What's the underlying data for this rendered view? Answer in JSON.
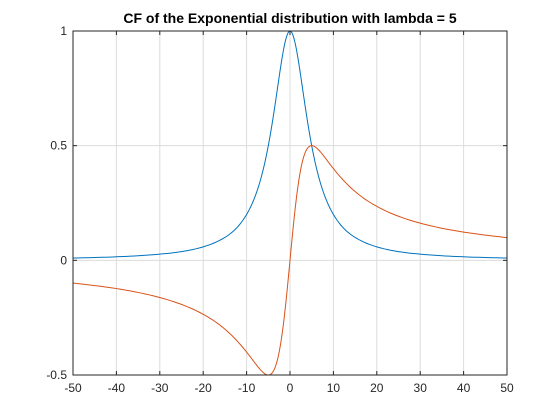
{
  "chart_data": {
    "type": "line",
    "title": "CF of the Exponential distribution with lambda = 5",
    "xlabel": "",
    "ylabel": "",
    "xlim": [
      -50,
      50
    ],
    "ylim": [
      -0.5,
      1
    ],
    "xticks": [
      -50,
      -40,
      -30,
      -20,
      -10,
      0,
      10,
      20,
      30,
      40,
      50
    ],
    "yticks": [
      -0.5,
      0,
      0.5,
      1
    ],
    "xtick_labels": [
      "-50",
      "-40",
      "-30",
      "-20",
      "-10",
      "0",
      "10",
      "20",
      "30",
      "40",
      "50"
    ],
    "ytick_labels": [
      "-0.5",
      "0",
      "0.5",
      "1"
    ],
    "grid": true,
    "legend": "none",
    "series": [
      {
        "color": "#0072BD",
        "x": [
          -50,
          -40,
          -30,
          -20,
          -15,
          -10,
          -8,
          -6,
          -5,
          -4,
          -3,
          -2,
          -1,
          0,
          1,
          2,
          3,
          4,
          5,
          6,
          8,
          10,
          15,
          20,
          30,
          40,
          50
        ],
        "values": [
          0.0099,
          0.0154,
          0.027,
          0.0588,
          0.1,
          0.2,
          0.2809,
          0.4098,
          0.5,
          0.6098,
          0.7353,
          0.8621,
          0.9615,
          1.0,
          0.9615,
          0.8621,
          0.7353,
          0.6098,
          0.5,
          0.4098,
          0.2809,
          0.2,
          0.1,
          0.0588,
          0.027,
          0.0154,
          0.0099
        ]
      },
      {
        "color": "#D95319",
        "x": [
          -50,
          -40,
          -30,
          -20,
          -15,
          -10,
          -8,
          -6,
          -5,
          -4,
          -3,
          -2,
          -1,
          0,
          1,
          2,
          3,
          4,
          5,
          6,
          8,
          10,
          15,
          20,
          30,
          40,
          50
        ],
        "values": [
          -0.099,
          -0.1231,
          -0.1622,
          -0.2353,
          -0.3,
          -0.4,
          -0.4494,
          -0.4918,
          -0.5,
          -0.4878,
          -0.4412,
          -0.3448,
          -0.1923,
          0.0,
          0.1923,
          0.3448,
          0.4412,
          0.4878,
          0.5,
          0.4918,
          0.4494,
          0.4,
          0.3,
          0.2353,
          0.1622,
          0.1231,
          0.099
        ]
      }
    ]
  }
}
